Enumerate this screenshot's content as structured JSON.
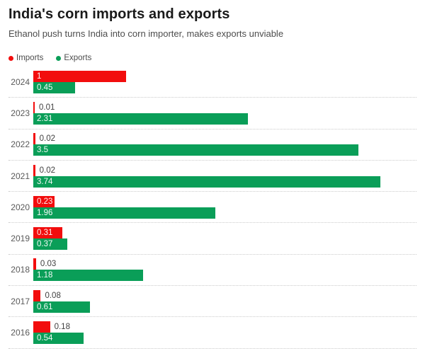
{
  "header": {
    "title": "India's corn imports and exports",
    "subtitle": "Ethanol push turns India into corn importer, makes exports unviable"
  },
  "legend": [
    {
      "label": "Imports",
      "color": "#f20d0d"
    },
    {
      "label": "Exports",
      "color": "#0a9e58"
    }
  ],
  "chart_data": {
    "type": "bar",
    "orientation": "horizontal",
    "title": "India's corn imports and exports",
    "subtitle": "Ethanol push turns India into corn importer, makes exports unviable",
    "categories": [
      "2024",
      "2023",
      "2022",
      "2021",
      "2020",
      "2019",
      "2018",
      "2017",
      "2016"
    ],
    "series": [
      {
        "name": "Imports",
        "color": "#f20d0d",
        "values": [
          1,
          0.01,
          0.02,
          0.02,
          0.23,
          0.31,
          0.03,
          0.08,
          0.18
        ],
        "labels": [
          "1",
          "0.01",
          "0.02",
          "0.02",
          "0.23",
          "0.31",
          "0.03",
          "0.08",
          "0.18"
        ]
      },
      {
        "name": "Exports",
        "color": "#0a9e58",
        "values": [
          0.45,
          2.31,
          3.5,
          3.74,
          1.96,
          0.37,
          1.18,
          0.61,
          0.54
        ],
        "labels": [
          "0.45",
          "2.31",
          "3.5",
          "3.74",
          "1.96",
          "0.37",
          "1.18",
          "0.61",
          "0.54"
        ]
      }
    ],
    "xlabel": "",
    "ylabel": "",
    "xmax": 3.74,
    "axis_ticks_visible": false,
    "grid": "dotted horizontal row separators",
    "legend_position": "top-left",
    "value_labels_visible": true
  },
  "layout_colors": {
    "background": "#ffffff",
    "title_text": "#1a1a1a",
    "subtitle_text": "#4d4d4d",
    "year_text": "#595959",
    "outside_label_text": "#404040",
    "separator": "#cbcbcb"
  }
}
